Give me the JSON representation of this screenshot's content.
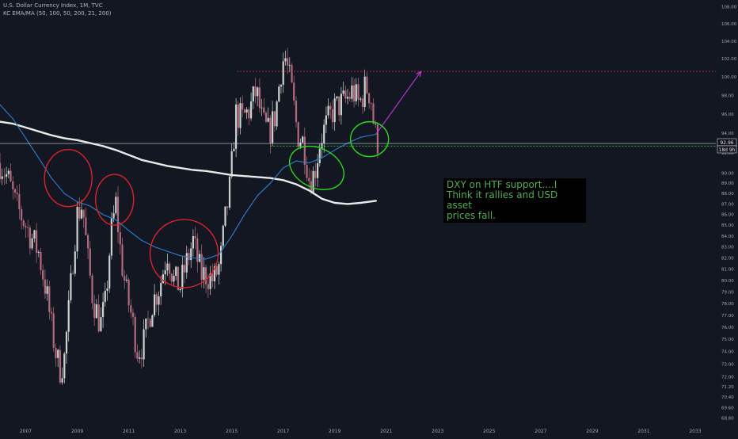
{
  "header": {
    "title": "U.S. Dollar Currency Index, 1M, TVC",
    "indicator": "KC EMA/MA (50, 100, 50, 200, 21, 200)"
  },
  "annotation": {
    "lines": [
      "DXY on HTF support....I",
      "Think it rallies and USD asset",
      "prices fall."
    ]
  },
  "price_tags": {
    "last": "92.96",
    "countdown": "18d 9h"
  },
  "colors": {
    "background": "#131722",
    "up": "#c9d3cd",
    "down": "#b36a7a",
    "ema_blue": "#2f7fd0",
    "ma_white": "#e9e9e9",
    "red_circle": "#e0202a",
    "green_circle": "#27d821",
    "resistance": "#c9303a",
    "support": "#35c43a",
    "projection": "#c23ad2",
    "note_text": "#4caf50"
  },
  "chart_data": {
    "type": "candlestick",
    "title": "U.S. Dollar Currency Index, 1M, TVC",
    "xlabel": "",
    "ylabel": "",
    "xlim": [
      2006.0,
      2033.8
    ],
    "ylim": [
      68.3,
      108.6
    ],
    "y_scale": "log",
    "grid": false,
    "x_tick_labels": [
      "2007",
      "2009",
      "2011",
      "2013",
      "2015",
      "2017",
      "2019",
      "2021",
      "2023",
      "2025",
      "2027",
      "2029",
      "2031",
      "2033"
    ],
    "y_tick_labels": [
      "68.80",
      "69.60",
      "70.40",
      "71.20",
      "72.00",
      "73.00",
      "74.00",
      "75.00",
      "76.00",
      "77.00",
      "78.00",
      "79.00",
      "80.00",
      "81.00",
      "82.00",
      "83.00",
      "84.00",
      "85.00",
      "86.00",
      "87.00",
      "88.00",
      "89.00",
      "90.00",
      "92.00",
      "94.00",
      "96.00",
      "98.00",
      "100.00",
      "102.00",
      "104.00",
      "106.00",
      "108.00"
    ],
    "price_path": [
      [
        2006.0,
        91.0
      ],
      [
        2006.3,
        89.5
      ],
      [
        2006.6,
        87.0
      ],
      [
        2006.9,
        85.5
      ],
      [
        2007.2,
        84.0
      ],
      [
        2007.5,
        82.5
      ],
      [
        2007.8,
        79.0
      ],
      [
        2008.0,
        76.0
      ],
      [
        2008.2,
        73.5
      ],
      [
        2008.35,
        72.5
      ],
      [
        2008.5,
        73.5
      ],
      [
        2008.7,
        78.0
      ],
      [
        2008.85,
        82.5
      ],
      [
        2009.0,
        86.0
      ],
      [
        2009.2,
        87.0
      ],
      [
        2009.4,
        82.0
      ],
      [
        2009.6,
        78.5
      ],
      [
        2009.9,
        76.2
      ],
      [
        2010.1,
        78.0
      ],
      [
        2010.3,
        84.0
      ],
      [
        2010.5,
        87.0
      ],
      [
        2010.7,
        82.0
      ],
      [
        2010.9,
        79.0
      ],
      [
        2011.1,
        77.0
      ],
      [
        2011.35,
        74.0
      ],
      [
        2011.6,
        74.8
      ],
      [
        2011.9,
        78.0
      ],
      [
        2012.2,
        79.5
      ],
      [
        2012.5,
        82.5
      ],
      [
        2012.75,
        80.0
      ],
      [
        2013.0,
        79.5
      ],
      [
        2013.3,
        82.0
      ],
      [
        2013.5,
        83.5
      ],
      [
        2013.8,
        80.5
      ],
      [
        2014.0,
        80.5
      ],
      [
        2014.3,
        80.0
      ],
      [
        2014.55,
        81.5
      ],
      [
        2014.75,
        85.5
      ],
      [
        2014.95,
        89.0
      ],
      [
        2015.15,
        96.0
      ],
      [
        2015.4,
        95.5
      ],
      [
        2015.7,
        96.5
      ],
      [
        2015.95,
        98.5
      ],
      [
        2016.2,
        95.0
      ],
      [
        2016.45,
        94.0
      ],
      [
        2016.7,
        96.0
      ],
      [
        2016.9,
        100.5
      ],
      [
        2017.05,
        102.5
      ],
      [
        2017.3,
        99.0
      ],
      [
        2017.55,
        94.0
      ],
      [
        2017.8,
        93.0
      ],
      [
        2018.0,
        89.5
      ],
      [
        2018.2,
        89.8
      ],
      [
        2018.45,
        93.5
      ],
      [
        2018.7,
        95.0
      ],
      [
        2018.95,
        96.5
      ],
      [
        2019.2,
        97.0
      ],
      [
        2019.45,
        97.5
      ],
      [
        2019.7,
        98.5
      ],
      [
        2019.95,
        97.0
      ],
      [
        2020.2,
        99.0
      ],
      [
        2020.4,
        98.0
      ],
      [
        2020.55,
        94.0
      ],
      [
        2020.7,
        92.96
      ]
    ],
    "ema_path": [
      [
        2006.0,
        97.0
      ],
      [
        2006.5,
        95.5
      ],
      [
        2007.0,
        93.5
      ],
      [
        2007.5,
        91.5
      ],
      [
        2008.0,
        89.5
      ],
      [
        2008.5,
        88.0
      ],
      [
        2009.0,
        87.2
      ],
      [
        2009.5,
        86.8
      ],
      [
        2010.0,
        86.0
      ],
      [
        2010.5,
        85.5
      ],
      [
        2011.0,
        84.5
      ],
      [
        2011.5,
        83.6
      ],
      [
        2012.0,
        83.0
      ],
      [
        2012.5,
        82.6
      ],
      [
        2013.0,
        82.2
      ],
      [
        2013.5,
        82.0
      ],
      [
        2014.0,
        81.9
      ],
      [
        2014.5,
        82.3
      ],
      [
        2015.0,
        84.0
      ],
      [
        2015.5,
        86.0
      ],
      [
        2016.0,
        87.8
      ],
      [
        2016.5,
        89.0
      ],
      [
        2017.0,
        90.5
      ],
      [
        2017.5,
        91.2
      ],
      [
        2018.0,
        91.0
      ],
      [
        2018.5,
        91.5
      ],
      [
        2019.0,
        92.3
      ],
      [
        2019.5,
        93.0
      ],
      [
        2020.0,
        93.6
      ],
      [
        2020.6,
        93.9
      ]
    ],
    "ma_path": [
      [
        2006.0,
        95.2
      ],
      [
        2006.5,
        95.0
      ],
      [
        2007.0,
        94.6
      ],
      [
        2007.5,
        94.2
      ],
      [
        2008.0,
        93.8
      ],
      [
        2008.5,
        93.5
      ],
      [
        2009.0,
        93.3
      ],
      [
        2009.5,
        93.0
      ],
      [
        2010.0,
        92.7
      ],
      [
        2010.5,
        92.3
      ],
      [
        2011.0,
        91.8
      ],
      [
        2011.5,
        91.3
      ],
      [
        2012.0,
        91.0
      ],
      [
        2012.5,
        90.7
      ],
      [
        2013.0,
        90.5
      ],
      [
        2013.5,
        90.3
      ],
      [
        2014.0,
        90.2
      ],
      [
        2014.5,
        90.0
      ],
      [
        2015.0,
        89.8
      ],
      [
        2015.5,
        89.7
      ],
      [
        2016.0,
        89.6
      ],
      [
        2016.5,
        89.5
      ],
      [
        2017.0,
        89.3
      ],
      [
        2017.5,
        88.9
      ],
      [
        2018.0,
        88.3
      ],
      [
        2018.5,
        87.5
      ],
      [
        2019.0,
        87.1
      ],
      [
        2019.5,
        87.0
      ],
      [
        2020.0,
        87.1
      ],
      [
        2020.6,
        87.3
      ]
    ],
    "resistance_level": 100.6,
    "resistance_range": [
      2015.2,
      2033.8
    ],
    "support_level": 92.7,
    "support_range": [
      2016.5,
      2033.8
    ],
    "last_price": 92.96,
    "projection": [
      [
        2020.6,
        93.9
      ],
      [
        2022.35,
        100.6
      ]
    ],
    "red_circles": [
      [
        2008.65,
        89.5
      ],
      [
        2010.45,
        87.4
      ],
      [
        2013.15,
        82.4
      ]
    ],
    "green_circles": [
      [
        2018.3,
        90.5
      ],
      [
        2020.35,
        93.4
      ]
    ]
  }
}
